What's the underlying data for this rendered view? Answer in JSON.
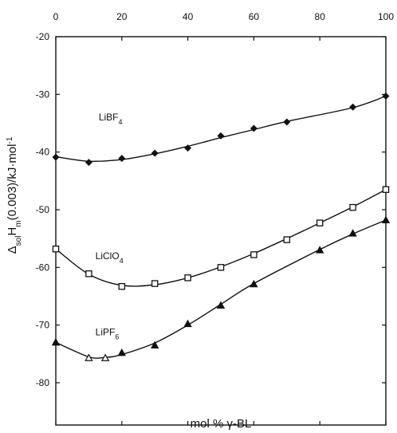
{
  "chart_data": {
    "type": "scatter",
    "xlabel": "mol % γ-BL",
    "ylabel": "ΔsolHm(0.003)/kJ·mol⁻¹",
    "xlim": [
      0,
      100
    ],
    "ylim": [
      -80,
      -20
    ],
    "x_ticks": [
      "0",
      "20",
      "40",
      "60",
      "80",
      "100"
    ],
    "y_ticks": [
      "-20",
      "-30",
      "-40",
      "-50",
      "-60",
      "-70",
      "-80"
    ],
    "x_tick_values": [
      0,
      20,
      40,
      60,
      80,
      100
    ],
    "y_tick_values": [
      -20,
      -30,
      -40,
      -50,
      -60,
      -70,
      -80
    ],
    "x_axis_position": "top",
    "grid": false,
    "series": [
      {
        "name": "LiBF4",
        "marker": "filled-diamond",
        "x": [
          0,
          10,
          20,
          30,
          40,
          50,
          60,
          70,
          90,
          100
        ],
        "y": [
          -40.9,
          -41.8,
          -41.1,
          -40.2,
          -39.3,
          -37.2,
          -35.9,
          -34.8,
          -32.2,
          -30.3
        ],
        "fit_y": [
          -40.8,
          -41.6,
          -41.3,
          -40.3,
          -39.0,
          -37.5,
          -36.1,
          -34.7,
          -32.3,
          -30.3
        ]
      },
      {
        "name": "LiClO4",
        "marker": "open-square",
        "x": [
          0,
          10,
          20,
          30,
          40,
          50,
          60,
          70,
          80,
          90,
          100
        ],
        "y": [
          -56.8,
          -61.1,
          -63.3,
          -62.8,
          -61.8,
          -60.0,
          -57.8,
          -55.2,
          -52.3,
          -49.6,
          -46.5
        ],
        "fit_y": [
          -56.8,
          -61.2,
          -63.1,
          -63.0,
          -61.8,
          -59.9,
          -57.6,
          -55.0,
          -52.3,
          -49.5,
          -46.5
        ]
      },
      {
        "name": "LiPF6",
        "marker": "filled-triangle",
        "x": [
          0,
          10,
          15,
          20,
          30,
          40,
          50,
          60,
          80,
          90,
          100
        ],
        "y": [
          -73.0,
          -75.7,
          -75.7,
          -74.8,
          -73.5,
          -69.8,
          -66.6,
          -62.9,
          -57.0,
          -54.1,
          -51.8
        ],
        "fit_y": [
          -73.0,
          -75.5,
          -75.6,
          -75.1,
          -73.1,
          -70.0,
          -66.4,
          -62.8,
          -56.9,
          -54.2,
          -51.8
        ]
      }
    ]
  }
}
